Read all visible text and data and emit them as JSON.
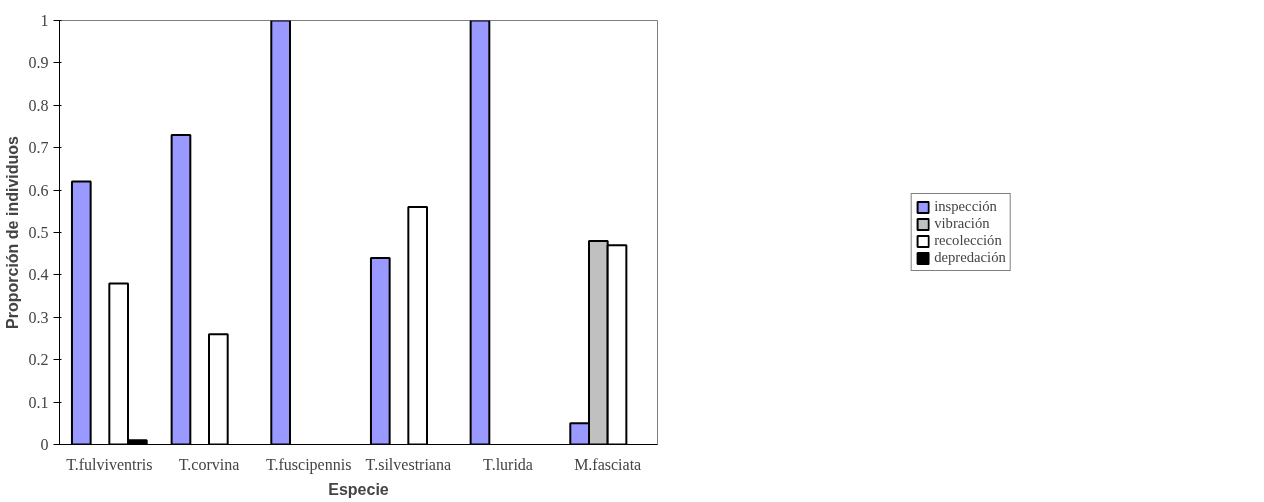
{
  "chart_data": {
    "type": "bar",
    "xlabel": "Especie",
    "ylabel": "Proporción de individuos",
    "categories": [
      "T.fulviventris",
      "T.corvina",
      "T.fuscipennis",
      "T.silvestriana",
      "T.lurida",
      "M.fasciata"
    ],
    "series": [
      {
        "name": "inspección",
        "color": "#9999ff",
        "values": [
          0.62,
          0.73,
          1,
          0.44,
          1,
          0.05
        ]
      },
      {
        "name": "vibración",
        "color": "#c0c0c0",
        "values": [
          null,
          null,
          null,
          null,
          null,
          0.48
        ]
      },
      {
        "name": "recolección",
        "color": "#ffffff",
        "values": [
          0.38,
          0.26,
          null,
          0.56,
          null,
          0.47
        ]
      },
      {
        "name": "depredación",
        "color": "#000000",
        "values": [
          0.01,
          null,
          null,
          null,
          null,
          null
        ]
      }
    ],
    "ylim": [
      0,
      1
    ],
    "yticks": [
      0,
      0.1,
      0.2,
      0.3,
      0.4,
      0.5,
      0.6,
      0.7,
      0.8,
      0.9,
      1
    ],
    "grid": false,
    "legend": "right"
  }
}
